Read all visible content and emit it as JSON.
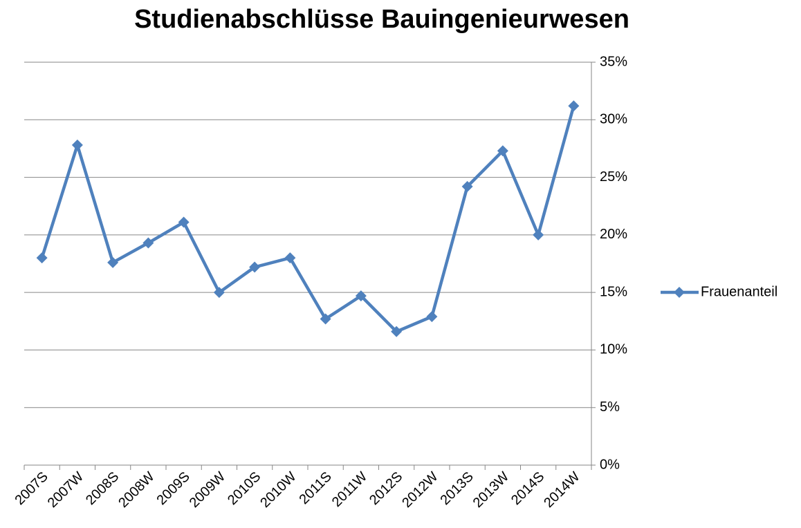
{
  "chart_data": {
    "type": "line",
    "title": "Studienabschlüsse Bauingenieurwesen",
    "categories": [
      "2007S",
      "2007W",
      "2008S",
      "2008W",
      "2009S",
      "2009W",
      "2010S",
      "2010W",
      "2011S",
      "2011W",
      "2012S",
      "2012W",
      "2013S",
      "2013W",
      "2014S",
      "2014W"
    ],
    "series": [
      {
        "name": "Frauenanteil",
        "color": "#4f81bd",
        "values": [
          18.0,
          27.8,
          17.6,
          19.3,
          21.1,
          15.0,
          17.2,
          18.0,
          12.7,
          14.7,
          11.6,
          12.9,
          24.2,
          27.3,
          20.0,
          31.2
        ]
      }
    ],
    "ylim": [
      0,
      35
    ],
    "yticks": [
      {
        "value": 0,
        "label": "0%"
      },
      {
        "value": 5,
        "label": "5%"
      },
      {
        "value": 10,
        "label": "10%"
      },
      {
        "value": 15,
        "label": "15%"
      },
      {
        "value": 20,
        "label": "20%"
      },
      {
        "value": 25,
        "label": "25%"
      },
      {
        "value": 30,
        "label": "30%"
      },
      {
        "value": 35,
        "label": "35%"
      }
    ],
    "grid": true,
    "legend": "right",
    "y_axis_side": "right"
  }
}
